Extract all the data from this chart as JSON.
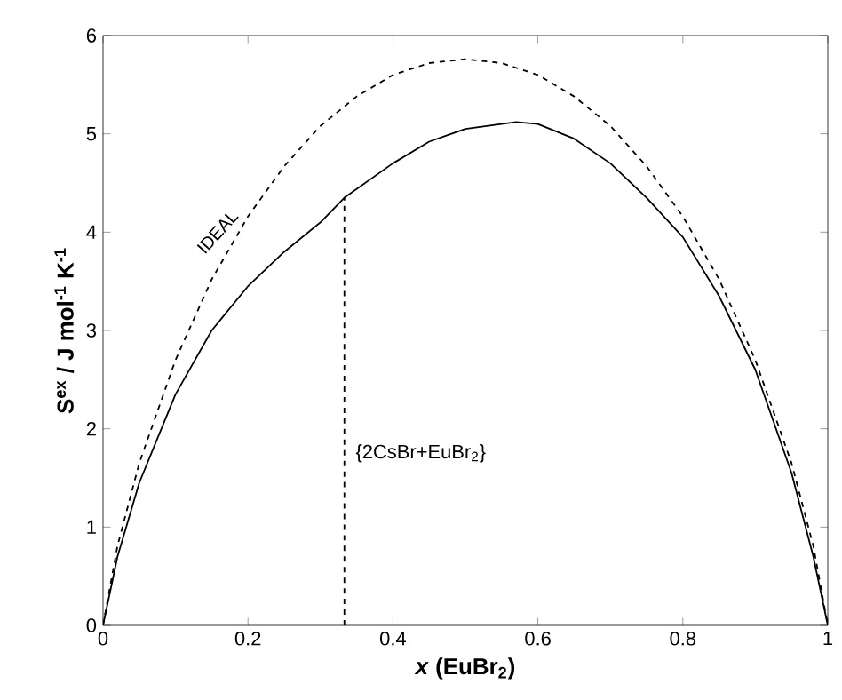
{
  "chart_data": {
    "type": "line",
    "xlabel": "*x* (EuBr$_{2}$)",
    "ylabel": "S$^{ex}$ / J mol$^{-1}$ K$^{-1}$",
    "xlim": [
      0,
      1
    ],
    "ylim": [
      0,
      6
    ],
    "xticks": [
      0,
      0.2,
      0.4,
      0.6,
      0.8,
      1
    ],
    "yticks": [
      0,
      1,
      2,
      3,
      4,
      5,
      6
    ],
    "grid": false,
    "legend": false,
    "series": [
      {
        "name": "IDEAL",
        "color": "#000000",
        "line_style": "dashed",
        "x": [
          0,
          0.02,
          0.05,
          0.1,
          0.15,
          0.2,
          0.25,
          0.3,
          0.35,
          0.4,
          0.45,
          0.5,
          0.55,
          0.6,
          0.65,
          0.7,
          0.75,
          0.8,
          0.85,
          0.9,
          0.95,
          0.98,
          1
        ],
        "values": [
          0,
          0.81,
          1.65,
          2.7,
          3.52,
          4.16,
          4.67,
          5.08,
          5.38,
          5.6,
          5.72,
          5.76,
          5.72,
          5.6,
          5.38,
          5.08,
          4.67,
          4.16,
          3.52,
          2.7,
          1.65,
          0.81,
          0
        ]
      },
      {
        "color": "#000000",
        "line_style": "solid",
        "x": [
          0,
          0.02,
          0.05,
          0.1,
          0.15,
          0.2,
          0.25,
          0.3,
          0.333,
          0.4,
          0.45,
          0.5,
          0.57,
          0.6,
          0.65,
          0.7,
          0.75,
          0.8,
          0.85,
          0.9,
          0.95,
          0.98,
          1
        ],
        "values": [
          0,
          0.7,
          1.45,
          2.35,
          3.0,
          3.45,
          3.8,
          4.1,
          4.35,
          4.7,
          4.92,
          5.05,
          5.12,
          5.1,
          4.95,
          4.7,
          4.35,
          3.95,
          3.35,
          2.6,
          1.55,
          0.7,
          0
        ]
      },
      {
        "color": "#000000",
        "line_style": "dashed",
        "x": [
          0.333,
          0.333
        ],
        "values": [
          0,
          4.35
        ]
      }
    ],
    "annotations": [
      {
        "text": "{2CsBr+EuBr$_{2}$}",
        "x": 0.34,
        "y": 1.75
      }
    ]
  }
}
